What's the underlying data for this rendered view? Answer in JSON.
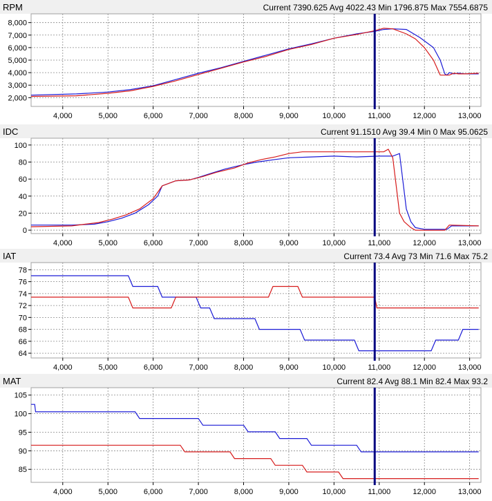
{
  "colors": {
    "series_a": "#1a1ad6",
    "series_b": "#d61a1a",
    "cursor": "#000080",
    "grid": "#888888",
    "frame": "#a0a0a0",
    "plot_bg": "#ffffff",
    "strip_bg": "#f0f0f0"
  },
  "cursor_x": 10900,
  "chart_data": [
    {
      "type": "line",
      "title": "RPM",
      "stats": "Current 7390.625 Avg 4022.43 Min 1796.875 Max 7554.6875",
      "xlim": [
        3300,
        13250
      ],
      "ylim": [
        1300,
        8700
      ],
      "x_ticks": [
        4000,
        5000,
        6000,
        7000,
        8000,
        9000,
        10000,
        11000,
        12000,
        13000
      ],
      "x_tick_labels": [
        "4,000",
        "5,000",
        "6,000",
        "7,000",
        "8,000",
        "9,000",
        "10,000",
        "11,000",
        "12,000",
        "13,000"
      ],
      "y_ticks": [
        2000,
        3000,
        4000,
        5000,
        6000,
        7000,
        8000
      ],
      "y_tick_labels": [
        "2,000",
        "3,000",
        "4,000",
        "5,000",
        "6,000",
        "7,000",
        "8,000"
      ],
      "series": [
        {
          "color": "blue",
          "x": [
            3300,
            4300,
            5000,
            5500,
            6000,
            6500,
            7000,
            7500,
            8000,
            8500,
            9000,
            9500,
            10000,
            10500,
            10900,
            11100,
            11300,
            11600,
            11900,
            12050,
            12200,
            12350,
            12450,
            12500,
            12550,
            12650,
            12750,
            12900,
            13200
          ],
          "y": [
            2200,
            2300,
            2450,
            2650,
            2950,
            3450,
            3950,
            4400,
            4900,
            5400,
            5900,
            6300,
            6750,
            7100,
            7300,
            7450,
            7500,
            7450,
            6800,
            6400,
            6000,
            5000,
            3900,
            3800,
            4000,
            3900,
            3950,
            3900,
            3900
          ]
        },
        {
          "color": "red",
          "x": [
            3300,
            4300,
            5000,
            5500,
            6000,
            6500,
            7000,
            7500,
            8000,
            8500,
            9000,
            9500,
            10000,
            10500,
            10900,
            11100,
            11300,
            11600,
            11800,
            12000,
            12200,
            12350,
            12550,
            12650,
            12750,
            12900,
            13200
          ],
          "y": [
            2100,
            2150,
            2350,
            2550,
            2900,
            3350,
            3850,
            4350,
            4850,
            5300,
            5850,
            6250,
            6750,
            7050,
            7350,
            7550,
            7500,
            7100,
            6700,
            6000,
            5000,
            3800,
            3800,
            3950,
            3900,
            3900,
            3950
          ]
        }
      ]
    },
    {
      "type": "line",
      "title": "IDC",
      "stats": "Current 91.1510 Avg 39.4 Min 0 Max 95.0625",
      "xlim": [
        3300,
        13250
      ],
      "ylim": [
        -4,
        108
      ],
      "x_ticks": [
        4000,
        5000,
        6000,
        7000,
        8000,
        9000,
        10000,
        11000,
        12000,
        13000
      ],
      "x_tick_labels": [
        "4,000",
        "5,000",
        "6,000",
        "7,000",
        "8,000",
        "9,000",
        "10,000",
        "11,000",
        "12,000",
        "13,000"
      ],
      "y_ticks": [
        0,
        20,
        40,
        60,
        80,
        100
      ],
      "y_tick_labels": [
        "0",
        "20",
        "40",
        "60",
        "80",
        "100"
      ],
      "series": [
        {
          "color": "blue",
          "x": [
            3300,
            4200,
            4700,
            5000,
            5300,
            5600,
            5900,
            6100,
            6200,
            6500,
            6800,
            7000,
            7300,
            7600,
            8000,
            8300,
            8700,
            9000,
            9500,
            10000,
            10500,
            11000,
            11300,
            11450,
            11600,
            11700,
            11800,
            12000,
            12200,
            12400,
            12500,
            12600,
            12800,
            13200
          ],
          "y": [
            6,
            6,
            7,
            10,
            14,
            20,
            30,
            40,
            52,
            58,
            59,
            62,
            67,
            72,
            77,
            80,
            83,
            85,
            86,
            87,
            86,
            87,
            87,
            90,
            25,
            10,
            3,
            1,
            1,
            1,
            1,
            5,
            5,
            5
          ]
        },
        {
          "color": "red",
          "x": [
            3300,
            4200,
            4500,
            4800,
            5100,
            5400,
            5700,
            6000,
            6200,
            6500,
            6800,
            7100,
            7400,
            7800,
            8100,
            8400,
            8700,
            9000,
            9300,
            9700,
            10000,
            10400,
            10800,
            11100,
            11200,
            11300,
            11450,
            11550,
            11700,
            11800,
            12000,
            12200,
            12300,
            12450,
            12550,
            13200
          ],
          "y": [
            4,
            5,
            7,
            9,
            13,
            18,
            25,
            37,
            52,
            58,
            59,
            63,
            68,
            73,
            79,
            83,
            86,
            90,
            92,
            92,
            92,
            92,
            92,
            92,
            95,
            85,
            20,
            10,
            3,
            0,
            0,
            0,
            0,
            0,
            6,
            5
          ]
        }
      ]
    },
    {
      "type": "line",
      "title": "IAT",
      "stats": "Current 73.4 Avg 73 Min 71.6 Max 75.2",
      "xlim": [
        3300,
        13250
      ],
      "ylim": [
        63.2,
        79.2
      ],
      "x_ticks": [
        4000,
        5000,
        6000,
        7000,
        8000,
        9000,
        10000,
        11000,
        12000,
        13000
      ],
      "x_tick_labels": [
        "4,000",
        "5,000",
        "6,000",
        "7,000",
        "8,000",
        "9,000",
        "10,000",
        "11,000",
        "12,000",
        "13,000"
      ],
      "y_ticks": [
        64,
        66,
        68,
        70,
        72,
        74,
        76,
        78
      ],
      "y_tick_labels": [
        "64",
        "66",
        "68",
        "70",
        "72",
        "74",
        "76",
        "78"
      ],
      "series": [
        {
          "color": "blue",
          "x": [
            3300,
            5450,
            5550,
            6100,
            6200,
            6950,
            7050,
            7250,
            7350,
            8250,
            8350,
            9250,
            9350,
            10450,
            10550,
            12150,
            12250,
            12750,
            12850,
            13200
          ],
          "y": [
            77,
            77,
            75.2,
            75.2,
            73.4,
            73.4,
            71.6,
            71.6,
            69.8,
            69.8,
            68,
            68,
            66.2,
            66.2,
            64.4,
            64.4,
            66.2,
            66.2,
            68,
            68
          ]
        },
        {
          "color": "red",
          "x": [
            3300,
            5450,
            5550,
            6400,
            6500,
            8550,
            8650,
            9200,
            9300,
            10900,
            10950,
            13200
          ],
          "y": [
            73.4,
            73.4,
            71.6,
            71.6,
            73.4,
            73.4,
            75.2,
            75.2,
            73.4,
            73.4,
            71.6,
            71.6
          ]
        }
      ]
    },
    {
      "type": "line",
      "title": "MAT",
      "stats": "Current 82.4 Avg 88.1 Min 82.4 Max 93.2",
      "xlim": [
        3300,
        13250
      ],
      "ylim": [
        81.5,
        107
      ],
      "x_ticks": [
        4000,
        5000,
        6000,
        7000,
        8000,
        9000,
        10000,
        11000,
        12000,
        13000
      ],
      "x_tick_labels": [
        "4,000",
        "5,000",
        "6,000",
        "7,000",
        "8,000",
        "9,000",
        "10,000",
        "11,000",
        "12,000",
        "13,000"
      ],
      "y_ticks": [
        85,
        90,
        95,
        100,
        105
      ],
      "y_tick_labels": [
        "85",
        "90",
        "95",
        "100",
        "105"
      ],
      "series": [
        {
          "color": "blue",
          "x": [
            3300,
            3380,
            3400,
            5600,
            5700,
            7000,
            7100,
            8000,
            8100,
            8700,
            8800,
            9400,
            9500,
            10500,
            10600,
            13200
          ],
          "y": [
            102.5,
            102.5,
            100.5,
            100.5,
            98.7,
            98.7,
            96.9,
            96.9,
            95.1,
            95.1,
            93.3,
            93.3,
            91.5,
            91.5,
            89.7,
            89.7
          ]
        },
        {
          "color": "red",
          "x": [
            3300,
            6600,
            6700,
            7700,
            7800,
            8600,
            8700,
            9300,
            9400,
            10100,
            10200,
            13200
          ],
          "y": [
            91.5,
            91.5,
            89.7,
            89.7,
            87.9,
            87.9,
            86.1,
            86.1,
            84.3,
            84.3,
            82.5,
            82.5
          ]
        }
      ]
    }
  ]
}
